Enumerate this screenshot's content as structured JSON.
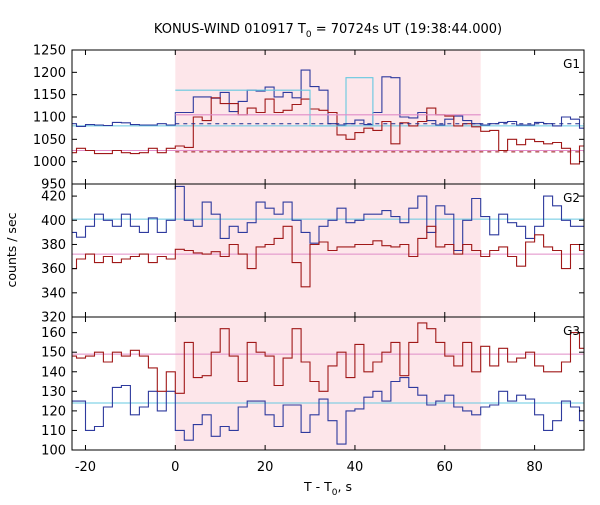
{
  "chart_data": {
    "type": "line",
    "title": "KONUS-WIND 010917 T0 = 70724s UT (19:38:44.000)",
    "title_parts": {
      "pre": "KONUS-WIND 010917 T",
      "sub": "0",
      "post": " = 70724s UT (19:38:44.000)"
    },
    "xlabel": "T - T0, s",
    "xlabel_parts": {
      "pre": "T - T",
      "sub": "0",
      "post": ", s"
    },
    "ylabel": "counts / sec",
    "xlim": [
      -23,
      91
    ],
    "xticks": [
      -20,
      0,
      20,
      40,
      60,
      80
    ],
    "xtick_labels": [
      "-20",
      "0",
      "20",
      "40",
      "60",
      "80"
    ],
    "shaded_interval": [
      0,
      68
    ],
    "colors": {
      "blue": "#2e3a9e",
      "red": "#a01818",
      "cyan": "#66c8e0",
      "pink": "#e08cc8",
      "shade": "#fde6ea",
      "darkred_dash": "#9a1010",
      "darkblue_dash": "#1a2a8e"
    },
    "panels": [
      {
        "label": "G1",
        "ylim": [
          950,
          1250
        ],
        "yticks": [
          950,
          1000,
          1050,
          1100,
          1150,
          1200,
          1250
        ],
        "ytick_labels": [
          "950",
          "1000",
          "1050",
          "1100",
          "1150",
          "1200",
          "1250"
        ],
        "series": [
          {
            "color": "blue",
            "x0": -24,
            "dx": 2,
            "values": [
              1085,
              1079,
              1083,
              1082,
              1081,
              1088,
              1087,
              1083,
              1082,
              1082,
              1085,
              1082,
              1110,
              1110,
              1145,
              1145,
              1142,
              1155,
              1112,
              1135,
              1160,
              1158,
              1167,
              1145,
              1155,
              1143,
              1205,
              1168,
              1160,
              1085,
              1082,
              1085,
              1093,
              1083,
              1110,
              1190,
              1188,
              1100,
              1098,
              1110,
              1092,
              1082,
              1095,
              1102,
              1092,
              1085,
              1082,
              1085,
              1088,
              1090,
              1082,
              1082,
              1088,
              1085,
              1080,
              1100,
              1095,
              1075
            ]
          },
          {
            "color": "red",
            "x0": -24,
            "dx": 2,
            "values": [
              1020,
              1030,
              1025,
              1018,
              1018,
              1025,
              1020,
              1018,
              1020,
              1030,
              1020,
              1030,
              1035,
              1032,
              1100,
              1092,
              1143,
              1130,
              1130,
              1105,
              1120,
              1110,
              1140,
              1110,
              1115,
              1128,
              1140,
              1118,
              1115,
              1110,
              1060,
              1050,
              1065,
              1075,
              1070,
              1090,
              1040,
              1087,
              1080,
              1090,
              1120,
              1105,
              1102,
              1080,
              1085,
              1078,
              1068,
              1070,
              1025,
              1050,
              1038,
              1050,
              1045,
              1040,
              1043,
              1030,
              995,
              1035
            ]
          }
        ],
        "levels": [
          {
            "color": "cyan",
            "y": 1080,
            "x_from": -23,
            "x_to": 91
          },
          {
            "color": "pink",
            "y": 1025,
            "x_from": -23,
            "x_to": 91
          }
        ],
        "steps": [
          {
            "color": "cyan",
            "points": [
              [
                0,
                1160
              ],
              [
                30,
                1160
              ],
              [
                30,
                1080
              ],
              [
                38,
                1080
              ],
              [
                38,
                1188
              ],
              [
                44,
                1188
              ],
              [
                44,
                1080
              ]
            ]
          },
          {
            "color": "pink",
            "points": [
              [
                0,
                1105
              ],
              [
                68,
                1105
              ]
            ]
          }
        ],
        "dashed": [
          {
            "color": "darkblue_dash",
            "y": 1085,
            "x_from": 0,
            "x_to": 91
          },
          {
            "color": "darkred_dash",
            "y": 1022,
            "x_from": 0,
            "x_to": 91
          }
        ]
      },
      {
        "label": "G2",
        "ylim": [
          320,
          430
        ],
        "yticks": [
          320,
          340,
          360,
          380,
          400,
          420
        ],
        "ytick_labels": [
          "320",
          "340",
          "360",
          "380",
          "400",
          "420"
        ],
        "series": [
          {
            "color": "blue",
            "x0": -24,
            "dx": 2,
            "values": [
              390,
              386,
              395,
              405,
              400,
              395,
              405,
              395,
              390,
              402,
              390,
              400,
              428,
              400,
              395,
              415,
              405,
              385,
              395,
              390,
              398,
              415,
              410,
              405,
              415,
              400,
              390,
              381,
              395,
              400,
              410,
              398,
              400,
              405,
              405,
              408,
              403,
              398,
              410,
              420,
              390,
              412,
              405,
              375,
              400,
              418,
              403,
              388,
              405,
              398,
              395,
              385,
              395,
              420,
              412,
              400,
              395,
              395
            ]
          },
          {
            "color": "red",
            "x0": -24,
            "dx": 2,
            "values": [
              360,
              368,
              372,
              365,
              370,
              365,
              368,
              370,
              372,
              365,
              370,
              368,
              376,
              375,
              373,
              372,
              374,
              370,
              380,
              372,
              360,
              378,
              380,
              385,
              395,
              365,
              345,
              380,
              382,
              375,
              378,
              378,
              380,
              380,
              383,
              379,
              378,
              380,
              370,
              385,
              395,
              378,
              380,
              372,
              380,
              375,
              370,
              375,
              378,
              370,
              362,
              382,
              388,
              378,
              375,
              360,
              380,
              375
            ]
          }
        ],
        "levels": [
          {
            "color": "cyan",
            "y": 401,
            "x_from": -23,
            "x_to": 91
          },
          {
            "color": "pink",
            "y": 372,
            "x_from": -23,
            "x_to": 91
          }
        ],
        "steps": [],
        "dashed": []
      },
      {
        "label": "G3",
        "ylim": [
          100,
          168
        ],
        "yticks": [
          100,
          110,
          120,
          130,
          140,
          150,
          160
        ],
        "ytick_labels": [
          "100",
          "110",
          "120",
          "130",
          "140",
          "150",
          "160"
        ],
        "series": [
          {
            "color": "blue",
            "x0": -24,
            "dx": 2,
            "values": [
              125,
              125,
              110,
              112,
              122,
              132,
              133,
              118,
              122,
              130,
              120,
              130,
              110,
              105,
              113,
              118,
              107,
              112,
              110,
              122,
              125,
              125,
              118,
              112,
              123,
              123,
              109,
              118,
              126,
              115,
              103,
              120,
              121,
              127,
              130,
              125,
              135,
              137,
              132,
              128,
              123,
              125,
              128,
              122,
              120,
              118,
              122,
              123,
              130,
              125,
              128,
              126,
              118,
              110,
              115,
              125,
              122,
              115
            ]
          },
          {
            "color": "red",
            "x0": -24,
            "dx": 2,
            "values": [
              148,
              147,
              148,
              150,
              145,
              150,
              148,
              151,
              148,
              142,
              130,
              140,
              129,
              155,
              137,
              138,
              150,
              162,
              148,
              135,
              155,
              150,
              148,
              133,
              147,
              162,
              145,
              135,
              130,
              143,
              150,
              137,
              154,
              140,
              145,
              150,
              155,
              138,
              155,
              165,
              162,
              155,
              148,
              143,
              155,
              140,
              153,
              143,
              152,
              145,
              147,
              150,
              143,
              140,
              140,
              145,
              160,
              152
            ]
          }
        ],
        "levels": [
          {
            "color": "cyan",
            "y": 124,
            "x_from": -23,
            "x_to": 91
          },
          {
            "color": "pink",
            "y": 149,
            "x_from": -23,
            "x_to": 91
          }
        ],
        "steps": [],
        "dashed": []
      }
    ]
  }
}
